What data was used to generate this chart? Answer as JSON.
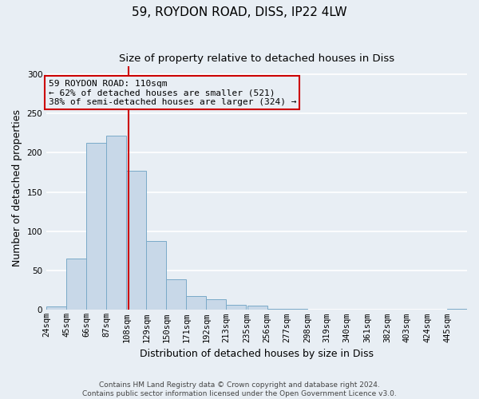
{
  "title": "59, ROYDON ROAD, DISS, IP22 4LW",
  "subtitle": "Size of property relative to detached houses in Diss",
  "xlabel": "Distribution of detached houses by size in Diss",
  "ylabel": "Number of detached properties",
  "bin_labels": [
    "24sqm",
    "45sqm",
    "66sqm",
    "87sqm",
    "108sqm",
    "129sqm",
    "150sqm",
    "171sqm",
    "192sqm",
    "213sqm",
    "235sqm",
    "256sqm",
    "277sqm",
    "298sqm",
    "319sqm",
    "340sqm",
    "361sqm",
    "382sqm",
    "403sqm",
    "424sqm",
    "445sqm"
  ],
  "bin_edges": [
    24,
    45,
    66,
    87,
    108,
    129,
    150,
    171,
    192,
    213,
    235,
    256,
    277,
    298,
    319,
    340,
    361,
    382,
    403,
    424,
    445
  ],
  "bin_width": 21,
  "bar_heights": [
    4,
    65,
    213,
    222,
    177,
    88,
    39,
    18,
    14,
    6,
    5,
    1,
    1,
    0,
    0,
    0,
    0,
    0,
    0,
    0,
    1
  ],
  "bar_color": "#c8d8e8",
  "bar_edgecolor": "#7aaac8",
  "ylim": [
    0,
    310
  ],
  "yticks": [
    0,
    50,
    100,
    150,
    200,
    250,
    300
  ],
  "xlim_left": 24,
  "xlim_right": 466,
  "marker_x": 110,
  "marker_color": "#cc0000",
  "annotation_title": "59 ROYDON ROAD: 110sqm",
  "annotation_line1": "← 62% of detached houses are smaller (521)",
  "annotation_line2": "38% of semi-detached houses are larger (324) →",
  "annotation_box_color": "#cc0000",
  "footer_line1": "Contains HM Land Registry data © Crown copyright and database right 2024.",
  "footer_line2": "Contains public sector information licensed under the Open Government Licence v3.0.",
  "bg_color": "#e8eef4",
  "grid_color": "#ffffff",
  "title_fontsize": 11,
  "subtitle_fontsize": 9.5,
  "label_fontsize": 9,
  "tick_fontsize": 7.5,
  "annotation_fontsize": 8,
  "footer_fontsize": 6.5
}
